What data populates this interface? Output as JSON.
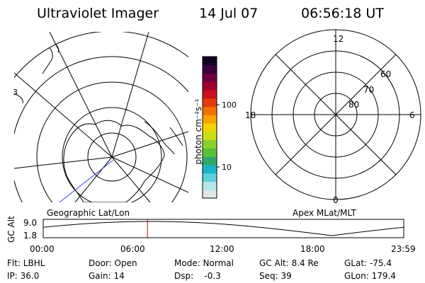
{
  "header": {
    "instrument": "Ultraviolet Imager",
    "date": "14 Jul 07",
    "time": "06:56:18 UT"
  },
  "geo_panel": {
    "label": "Geographic Lat/Lon",
    "edge_label": "3"
  },
  "mlt_panel": {
    "label": "Apex MLat/MLT",
    "mlt_labels": {
      "top": "12",
      "left": "18",
      "right": "6",
      "bottom": "0"
    },
    "lat_labels": [
      "60",
      "70",
      "80"
    ]
  },
  "colorbar": {
    "unit": "photon cm⁻²s⁻¹",
    "ticks": [
      "100",
      "10"
    ],
    "colors": [
      "#dfe6e8",
      "#b4e6ea",
      "#5ecfdd",
      "#18b6c8",
      "#2fa86a",
      "#57c03b",
      "#8ad12a",
      "#c8e013",
      "#f3d300",
      "#f7a400",
      "#f07000",
      "#e63b10",
      "#cc1020",
      "#a0002a",
      "#6e0040",
      "#3b0040",
      "#120020"
    ]
  },
  "altitude_plot": {
    "ylabel": "GC Alt",
    "yticks": [
      "9.0",
      "1.8"
    ],
    "xticks": [
      "00:00",
      "06:00",
      "12:00",
      "18:00",
      "23:59"
    ],
    "marker_hour": 6.94
  },
  "info": {
    "flt": "Flt: LBHL",
    "ip": "IP: 36.0",
    "door": "Door: Open",
    "gain": "Gain: 14",
    "mode": "Mode: Normal",
    "dsp": "Dsp:    -0.3",
    "gcalt": "GC Alt: 8.4 Re",
    "seq": "Seq: 39",
    "glat": "GLat: -75.4",
    "glon": "GLon: 179.4"
  }
}
